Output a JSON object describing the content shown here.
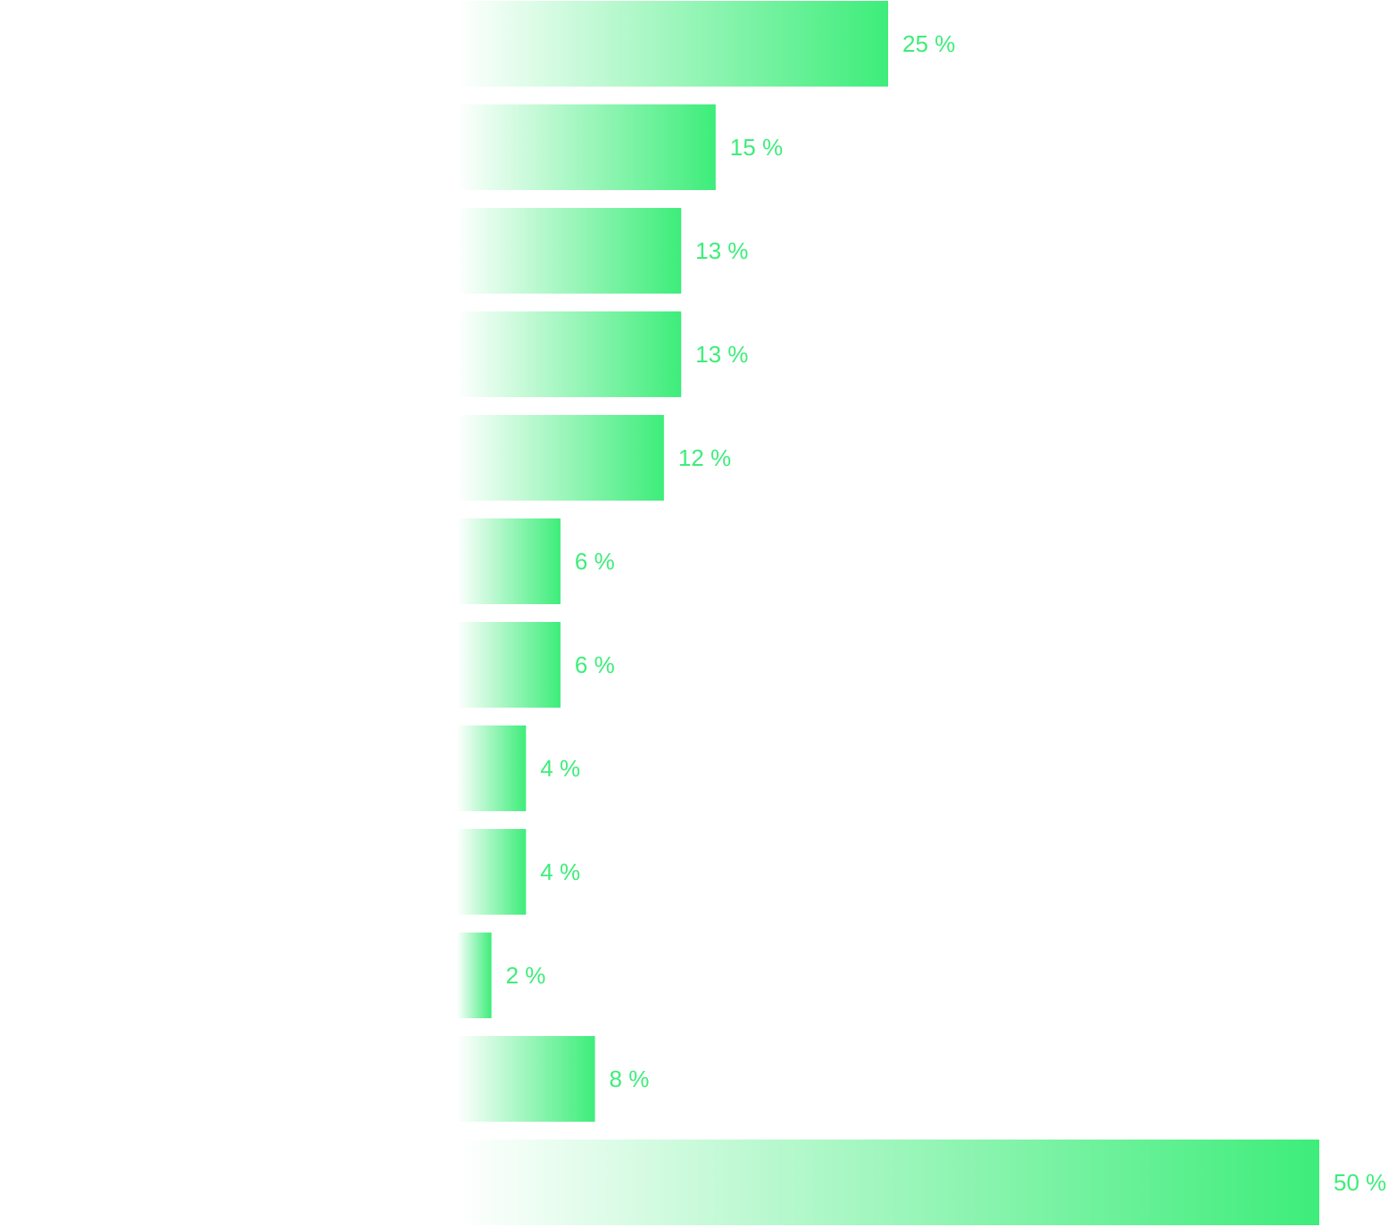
{
  "chart_data": {
    "type": "hbar",
    "values": [
      25,
      15,
      13,
      13,
      12,
      6,
      6,
      4,
      4,
      2,
      8,
      50
    ],
    "value_labels": [
      "25 %",
      "15 %",
      "13 %",
      "13 %",
      "12 %",
      "6 %",
      "6 %",
      "4 %",
      "4 %",
      "2 %",
      "8 %",
      "50 %"
    ],
    "color": "#3ded7a"
  }
}
